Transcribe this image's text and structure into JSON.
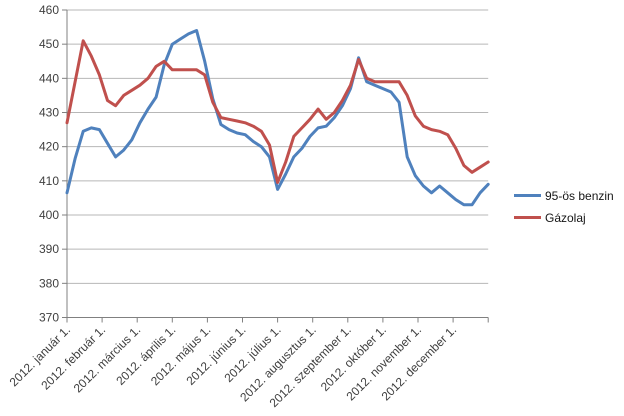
{
  "chart_data": {
    "type": "line",
    "x_tick_labels": [
      "2012. január 1.",
      "2012. február 1.",
      "2012. március 1.",
      "2012. április 1.",
      "2012. május 1.",
      "2012. június 1.",
      "2012. július 1.",
      "2012. augusztus 1.",
      "2012. szeptember 1.",
      "2012. október 1.",
      "2012. november 1.",
      "2012. december 1."
    ],
    "y_tick_labels": [
      "370",
      "380",
      "390",
      "400",
      "410",
      "420",
      "430",
      "440",
      "450",
      "460"
    ],
    "ylim": [
      370,
      460
    ],
    "y_step": 10,
    "grid": "horizontal-only",
    "legend_position": "right",
    "x_spacing": "weekly",
    "series": [
      {
        "name": "95-ös benzin",
        "color": "#4F81BD",
        "values": [
          406.5,
          416.5,
          424.5,
          425.5,
          425,
          421,
          417,
          419,
          422,
          427,
          431,
          434.5,
          444,
          450,
          451.5,
          453,
          454,
          445,
          434,
          426.5,
          425,
          424,
          423.5,
          421.5,
          420,
          417,
          407.5,
          412,
          417,
          419.5,
          423,
          425.5,
          426,
          428.5,
          432,
          437,
          446,
          439,
          438,
          437,
          436,
          433,
          417,
          411.5,
          408.5,
          406.5,
          408.5,
          406.5,
          404.5,
          403,
          403,
          406.5,
          409
        ]
      },
      {
        "name": "Gázolaj",
        "color": "#C0504D",
        "values": [
          427,
          439,
          451,
          446.5,
          441,
          433.5,
          432,
          435,
          436.5,
          438,
          440,
          443.5,
          445,
          442.5,
          442.5,
          442.5,
          442.5,
          441,
          433,
          428.5,
          428,
          427.5,
          427,
          426,
          424.5,
          420.5,
          409.5,
          415.5,
          423,
          425.5,
          428,
          431,
          428,
          430,
          433.5,
          438,
          445.5,
          440,
          439,
          439,
          439,
          439,
          435,
          429,
          426,
          425,
          424.5,
          423.5,
          419.5,
          414.5,
          412.5,
          414,
          415.5
        ]
      }
    ],
    "style": {
      "gridline_color": "#b7b7b7",
      "axis_color": "#808080",
      "tick_label_color": "#3f3f3f",
      "line_width": 3
    }
  },
  "legend": {
    "items": [
      {
        "label": "95-ös benzin"
      },
      {
        "label": "Gázolaj"
      }
    ]
  }
}
